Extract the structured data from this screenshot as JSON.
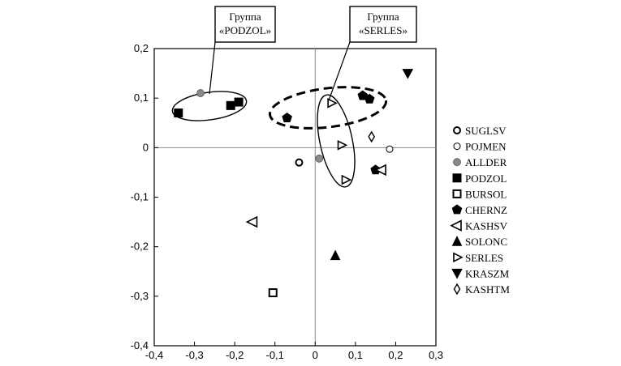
{
  "chart_data": {
    "type": "scatter",
    "xlim": [
      -0.4,
      0.3
    ],
    "ylim": [
      -0.4,
      0.2
    ],
    "x_ticks": [
      "-0,4",
      "-0,3",
      "-0,2",
      "-0,1",
      "0",
      "0,1",
      "0,2",
      "0,3"
    ],
    "y_ticks": [
      "0,2",
      "0,1",
      "0",
      "-0,1",
      "-0,2",
      "-0,3",
      "-0,4"
    ],
    "grid": false,
    "zero_lines": true,
    "legend_placement": "right",
    "series": [
      {
        "name": "SUGLSV",
        "marker": "circle-open-thick",
        "points": [
          [
            -0.04,
            -0.03
          ]
        ]
      },
      {
        "name": "POJMEN",
        "marker": "circle-open",
        "points": [
          [
            0.185,
            -0.003
          ]
        ]
      },
      {
        "name": "ALLDER",
        "marker": "circle-gray",
        "points": [
          [
            -0.285,
            0.11
          ],
          [
            0.01,
            -0.022
          ]
        ]
      },
      {
        "name": "PODZOL",
        "marker": "square-filled",
        "points": [
          [
            -0.34,
            0.07
          ],
          [
            -0.21,
            0.085
          ],
          [
            -0.19,
            0.092
          ]
        ]
      },
      {
        "name": "BURSOL",
        "marker": "square-open",
        "points": [
          [
            -0.105,
            -0.293
          ]
        ]
      },
      {
        "name": "CHERNZ",
        "marker": "pentagon-filled",
        "points": [
          [
            -0.07,
            0.06
          ],
          [
            0.118,
            0.105
          ],
          [
            0.135,
            0.098
          ],
          [
            0.15,
            -0.045
          ]
        ]
      },
      {
        "name": "KASHSV",
        "marker": "triangle-left-open",
        "points": [
          [
            -0.155,
            -0.15
          ],
          [
            0.165,
            -0.045
          ]
        ]
      },
      {
        "name": "SOLONC",
        "marker": "triangle-up-filled",
        "points": [
          [
            0.05,
            -0.218
          ]
        ]
      },
      {
        "name": "SERLES",
        "marker": "triangle-right-open",
        "points": [
          [
            0.04,
            0.09
          ],
          [
            0.065,
            0.005
          ],
          [
            0.075,
            -0.065
          ]
        ]
      },
      {
        "name": "KRASZM",
        "marker": "triangle-down-filled",
        "points": [
          [
            0.23,
            0.15
          ]
        ]
      },
      {
        "name": "KASHTM",
        "marker": "diamond-open",
        "points": [
          [
            0.14,
            0.022
          ]
        ]
      }
    ],
    "annotations": [
      {
        "line1": "Группа",
        "line2": "«PODZOL»"
      },
      {
        "line1": "Группа",
        "line2": "«SERLES»"
      }
    ]
  }
}
